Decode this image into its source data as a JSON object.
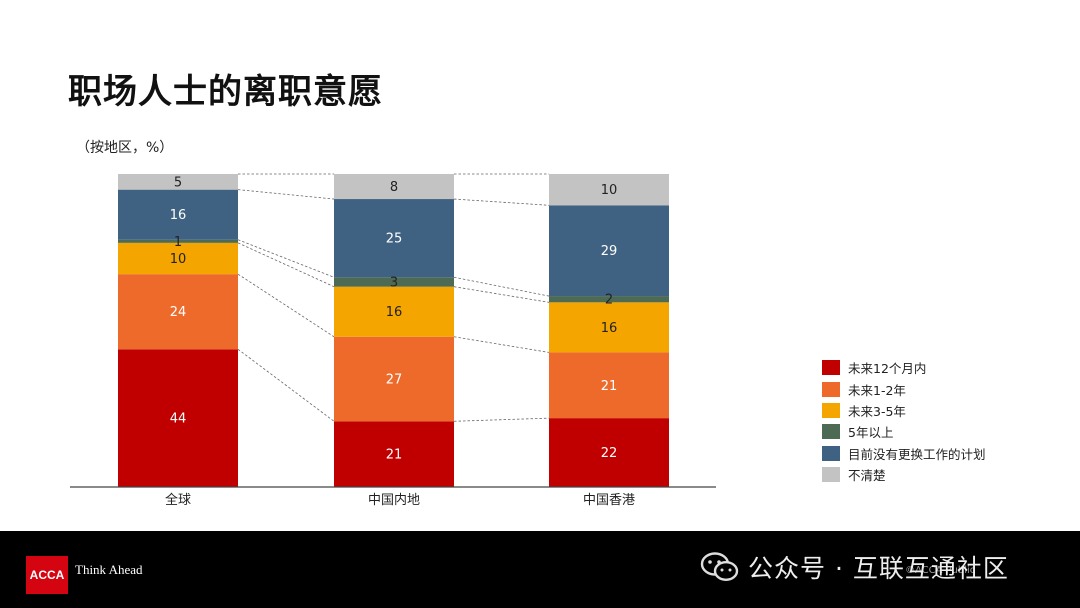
{
  "title": "职场人士的离职意愿",
  "subtitle": "（按地区，%）",
  "colors": {
    "within_12_months": "#c00000",
    "one_to_two_years": "#ed6a2b",
    "three_to_five_years": "#f5a500",
    "over_five_years": "#4d6a55",
    "no_plan": "#3f6282",
    "unclear": "#c3c3c3"
  },
  "chart_data": {
    "type": "bar",
    "stacked": true,
    "categories": [
      "全球",
      "中国内地",
      "中国香港"
    ],
    "series": [
      {
        "name": "未来12个月内",
        "color": "#c00000",
        "values": [
          44,
          21,
          22
        ]
      },
      {
        "name": "未来1-2年",
        "color": "#ed6a2b",
        "values": [
          24,
          27,
          21
        ]
      },
      {
        "name": "未来3-5年",
        "color": "#f5a500",
        "values": [
          10,
          16,
          16
        ]
      },
      {
        "name": "5年以上",
        "color": "#4d6a55",
        "values": [
          1,
          3,
          2
        ]
      },
      {
        "name": "目前没有更换工作的计划",
        "color": "#3f6282",
        "values": [
          16,
          25,
          29
        ]
      },
      {
        "name": "不清楚",
        "color": "#c3c3c3",
        "values": [
          5,
          8,
          10
        ]
      }
    ],
    "legend_position": "right",
    "connector_lines": true,
    "grid": false
  },
  "footer": {
    "logo_text": "ACCA",
    "tagline": "Think Ahead",
    "watermark": "公众号 · 互联互通社区",
    "faint_text": "©ACCA    Public"
  }
}
